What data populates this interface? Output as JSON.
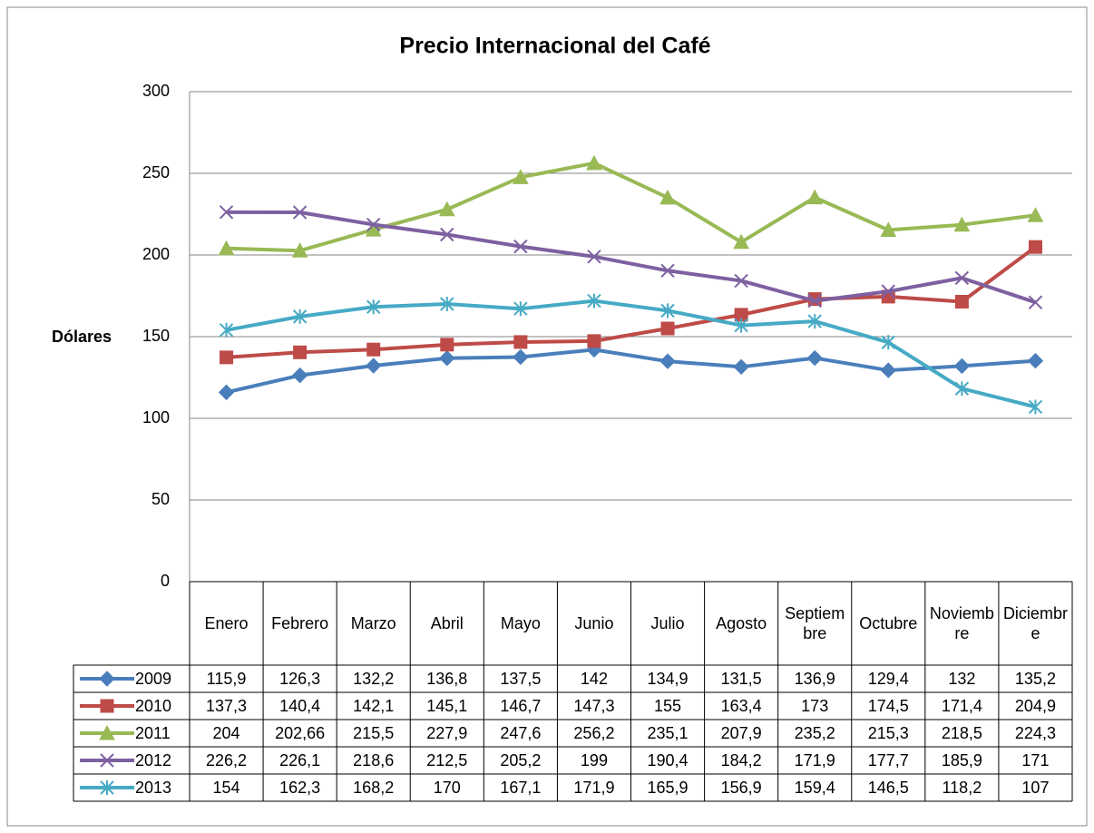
{
  "chart_data": {
    "type": "line",
    "title": "Precio Internacional del Café",
    "y_label": "Dólares",
    "categories": [
      "Enero",
      "Febrero",
      "Marzo",
      "Abril",
      "Mayo",
      "Junio",
      "Julio",
      "Agosto",
      "Septiembre",
      "Octubre",
      "Noviembre",
      "Diciembre"
    ],
    "ylim": [
      0,
      300
    ],
    "yticks": [
      0,
      50,
      100,
      150,
      200,
      250,
      300
    ],
    "grid": true,
    "series": [
      {
        "name": "2009",
        "color": "#4a7ebb",
        "marker": "diamond",
        "values": [
          115.9,
          126.3,
          132.2,
          136.8,
          137.5,
          142,
          134.9,
          131.5,
          136.9,
          129.4,
          132,
          135.2
        ],
        "value_labels": [
          "115,9",
          "126,3",
          "132,2",
          "136,8",
          "137,5",
          "142",
          "134,9",
          "131,5",
          "136,9",
          "129,4",
          "132",
          "135,2"
        ]
      },
      {
        "name": "2010",
        "color": "#be4b48",
        "marker": "square",
        "values": [
          137.3,
          140.4,
          142.1,
          145.1,
          146.7,
          147.3,
          155,
          163.4,
          173,
          174.5,
          171.4,
          204.9
        ],
        "value_labels": [
          "137,3",
          "140,4",
          "142,1",
          "145,1",
          "146,7",
          "147,3",
          "155",
          "163,4",
          "173",
          "174,5",
          "171,4",
          "204,9"
        ]
      },
      {
        "name": "2011",
        "color": "#98b954",
        "marker": "triangle",
        "values": [
          204,
          202.66,
          215.5,
          227.9,
          247.6,
          256.2,
          235.1,
          207.9,
          235.2,
          215.3,
          218.5,
          224.3
        ],
        "value_labels": [
          "204",
          "202,66",
          "215,5",
          "227,9",
          "247,6",
          "256,2",
          "235,1",
          "207,9",
          "235,2",
          "215,3",
          "218,5",
          "224,3"
        ]
      },
      {
        "name": "2012",
        "color": "#7d60a0",
        "marker": "x",
        "values": [
          226.2,
          226.1,
          218.6,
          212.5,
          205.2,
          199,
          190.4,
          184.2,
          171.9,
          177.7,
          185.9,
          171
        ],
        "value_labels": [
          "226,2",
          "226,1",
          "218,6",
          "212,5",
          "205,2",
          "199",
          "190,4",
          "184,2",
          "171,9",
          "177,7",
          "185,9",
          "171"
        ]
      },
      {
        "name": "2013",
        "color": "#46aac5",
        "marker": "star",
        "values": [
          154,
          162.3,
          168.2,
          170,
          167.1,
          171.9,
          165.9,
          156.9,
          159.4,
          146.5,
          118.2,
          107
        ],
        "value_labels": [
          "154",
          "162,3",
          "168,2",
          "170",
          "167,1",
          "171,9",
          "165,9",
          "156,9",
          "159,4",
          "146,5",
          "118,2",
          "107"
        ]
      }
    ]
  }
}
